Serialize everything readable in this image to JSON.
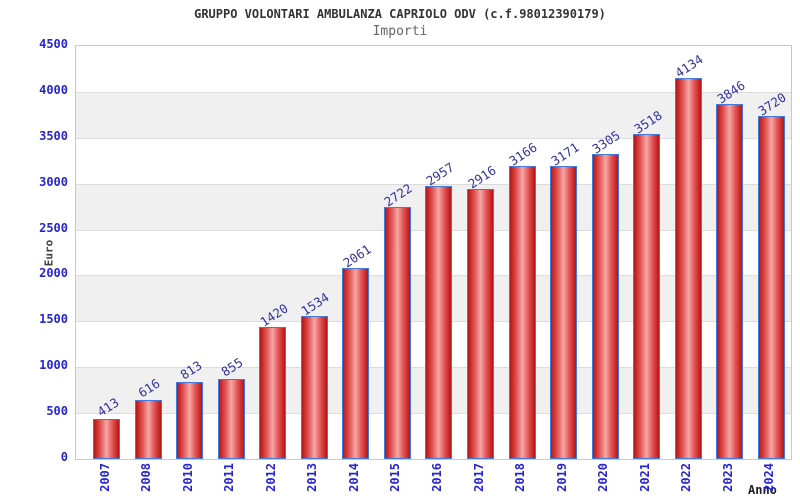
{
  "chart_data": {
    "type": "bar",
    "title": "GRUPPO VOLONTARI AMBULANZA CAPRIOLO ODV (c.f.98012390179)",
    "subtitle": "Importi",
    "xlabel": "Anno",
    "ylabel": "Euro",
    "categories": [
      "2007",
      "2008",
      "2010",
      "2011",
      "2012",
      "2013",
      "2014",
      "2015",
      "2016",
      "2017",
      "2018",
      "2019",
      "2020",
      "2021",
      "2022",
      "2023",
      "2024"
    ],
    "values": [
      413,
      616,
      813,
      855,
      1420,
      1534,
      2061,
      2722,
      2957,
      2916,
      3166,
      3171,
      3305,
      3518,
      4134,
      3846,
      3720
    ],
    "ylim": [
      0,
      4500
    ],
    "ytick_step": 500,
    "grid": true,
    "legend": "none",
    "bar_value_labels_rotated": true,
    "x_tick_labels_rotated_deg": -90,
    "colors": {
      "bar_fill_edge": "#b81515",
      "bar_fill_center": "#f5a6a6",
      "bar_border": "#4479dd",
      "axis_tick_text": "#2525d2",
      "bar_value_text": "#3333a0",
      "plot_band": "#f0f0f0",
      "gridline": "#dcdcdc",
      "plot_border": "#c9c9c9",
      "title_text": "#333333",
      "subtitle_text": "#666666",
      "axis_title_text": "#404040"
    }
  }
}
